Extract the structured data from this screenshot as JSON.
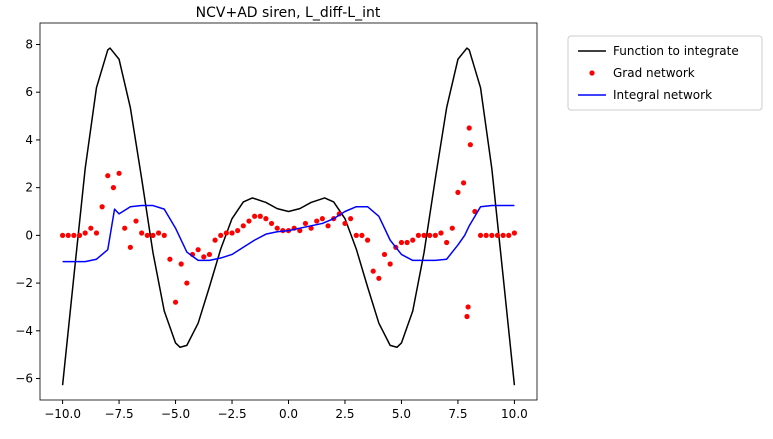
{
  "chart_data": {
    "type": "line",
    "title": "NCV+AD siren, L_diff-L_int",
    "xlim": [
      -11,
      11
    ],
    "ylim": [
      -6.9,
      8.9
    ],
    "xticks": [
      {
        "value": -10,
        "label": "−10.0"
      },
      {
        "value": -7.5,
        "label": "−7.5"
      },
      {
        "value": -5,
        "label": "−5.0"
      },
      {
        "value": -2.5,
        "label": "−2.5"
      },
      {
        "value": 0,
        "label": "0.0"
      },
      {
        "value": 2.5,
        "label": "2.5"
      },
      {
        "value": 5,
        "label": "5.0"
      },
      {
        "value": 7.5,
        "label": "7.5"
      },
      {
        "value": 10,
        "label": "10.0"
      }
    ],
    "yticks": [
      {
        "value": -6,
        "label": "−6"
      },
      {
        "value": -4,
        "label": "−4"
      },
      {
        "value": -2,
        "label": "−2"
      },
      0,
      2,
      4,
      6,
      8
    ],
    "grid": false,
    "legend": "outside upper right",
    "series": [
      {
        "name": "Function to integrate",
        "color": "#000000",
        "mode": "line",
        "x": [
          -10,
          -9.5,
          -9,
          -8.5,
          -8,
          -7.9,
          -7.5,
          -7,
          -6.5,
          -6,
          -5.5,
          -5,
          -4.8,
          -4.5,
          -4,
          -3.5,
          -3,
          -2.5,
          -2,
          -1.6,
          -1,
          -0.5,
          0,
          0.5,
          1,
          1.6,
          2,
          2.5,
          3,
          3.5,
          4,
          4.5,
          4.8,
          5,
          5.5,
          6,
          6.5,
          7,
          7.5,
          7.9,
          8,
          8.5,
          9,
          9.5,
          10
        ],
        "values": [
          -6.28,
          -1.71,
          2.8,
          6.19,
          7.77,
          7.85,
          7.38,
          5.35,
          2.38,
          -0.72,
          -3.17,
          -4.51,
          -4.69,
          -4.61,
          -3.68,
          -2.16,
          -0.57,
          0.7,
          1.4,
          1.57,
          1.38,
          1.12,
          1,
          1.12,
          1.38,
          1.57,
          1.4,
          0.7,
          -0.57,
          -2.16,
          -3.68,
          -4.61,
          -4.69,
          -4.51,
          -3.17,
          -0.72,
          2.38,
          5.35,
          7.38,
          7.85,
          7.77,
          6.19,
          2.8,
          -1.71,
          -6.28
        ]
      },
      {
        "name": "Grad network",
        "color": "#ff0000",
        "mode": "markers",
        "x": [
          -10,
          -9.75,
          -9.5,
          -9.25,
          -9,
          -8.75,
          -8.5,
          -8.25,
          -8,
          -7.75,
          -7.5,
          -7.25,
          -7,
          -6.75,
          -6.5,
          -6.25,
          -6,
          -5.75,
          -5.5,
          -5.25,
          -5,
          -4.75,
          -4.5,
          -4.25,
          -4,
          -3.75,
          -3.5,
          -3.25,
          -3,
          -2.75,
          -2.5,
          -2.25,
          -2,
          -1.75,
          -1.5,
          -1.25,
          -1,
          -0.75,
          -0.5,
          -0.25,
          0,
          0.25,
          0.5,
          0.75,
          1,
          1.25,
          1.5,
          1.75,
          2,
          2.25,
          2.5,
          2.75,
          3,
          3.25,
          3.5,
          3.75,
          4,
          4.25,
          4.5,
          4.75,
          5,
          5.25,
          5.5,
          5.75,
          6,
          6.25,
          6.5,
          6.75,
          7,
          7.25,
          7.5,
          7.75,
          7.9,
          7.95,
          8,
          8.05,
          8.25,
          8.5,
          8.75,
          9,
          9.25,
          9.5,
          9.75,
          10
        ],
        "values": [
          0,
          0,
          0,
          0,
          0.1,
          0.3,
          0.1,
          1.2,
          2.5,
          2,
          2.6,
          0.3,
          -0.5,
          0.6,
          0.1,
          0,
          0,
          0.1,
          0,
          -1,
          -2.8,
          -1.2,
          -2,
          -0.8,
          -0.6,
          -0.9,
          -0.8,
          -0.2,
          0,
          0.1,
          0.1,
          0.2,
          0.4,
          0.6,
          0.8,
          0.8,
          0.7,
          0.5,
          0.3,
          0.2,
          0.2,
          0.3,
          0.2,
          0.5,
          0.3,
          0.6,
          0.7,
          0.4,
          0.7,
          0.9,
          0.5,
          0.7,
          0,
          0,
          -0.2,
          -1.5,
          -1.8,
          -0.8,
          -1.2,
          -0.5,
          -0.3,
          -0.3,
          -0.2,
          0,
          0,
          0,
          0,
          0.1,
          -0.3,
          0.3,
          1.8,
          2.2,
          -3.4,
          -3,
          4.5,
          3.8,
          1,
          0,
          0,
          0,
          0,
          0,
          0,
          0.1
        ]
      },
      {
        "name": "Integral network",
        "color": "#0000ff",
        "mode": "line",
        "x": [
          -10,
          -9,
          -8.5,
          -8,
          -7.7,
          -7.5,
          -7,
          -6.5,
          -6,
          -5.5,
          -5,
          -4.5,
          -4,
          -3.5,
          -3,
          -2.5,
          -2,
          -1.5,
          -1,
          -0.5,
          0,
          0.5,
          1,
          1.5,
          2,
          2.5,
          3,
          3.5,
          4,
          4.5,
          5,
          5.5,
          6,
          6.5,
          7,
          7.5,
          7.8,
          8,
          8.5,
          9,
          10
        ],
        "values": [
          -1.1,
          -1.1,
          -1,
          -0.6,
          1.1,
          0.9,
          1.2,
          1.25,
          1.25,
          1.1,
          0.3,
          -0.7,
          -1.05,
          -1.05,
          -0.95,
          -0.8,
          -0.5,
          -0.2,
          0.05,
          0.15,
          0.2,
          0.3,
          0.4,
          0.5,
          0.7,
          1,
          1.2,
          1.2,
          0.8,
          -0.2,
          -0.8,
          -1.05,
          -1.05,
          -1.05,
          -1,
          -0.4,
          0,
          0.4,
          1.2,
          1.25,
          1.25
        ]
      }
    ]
  }
}
